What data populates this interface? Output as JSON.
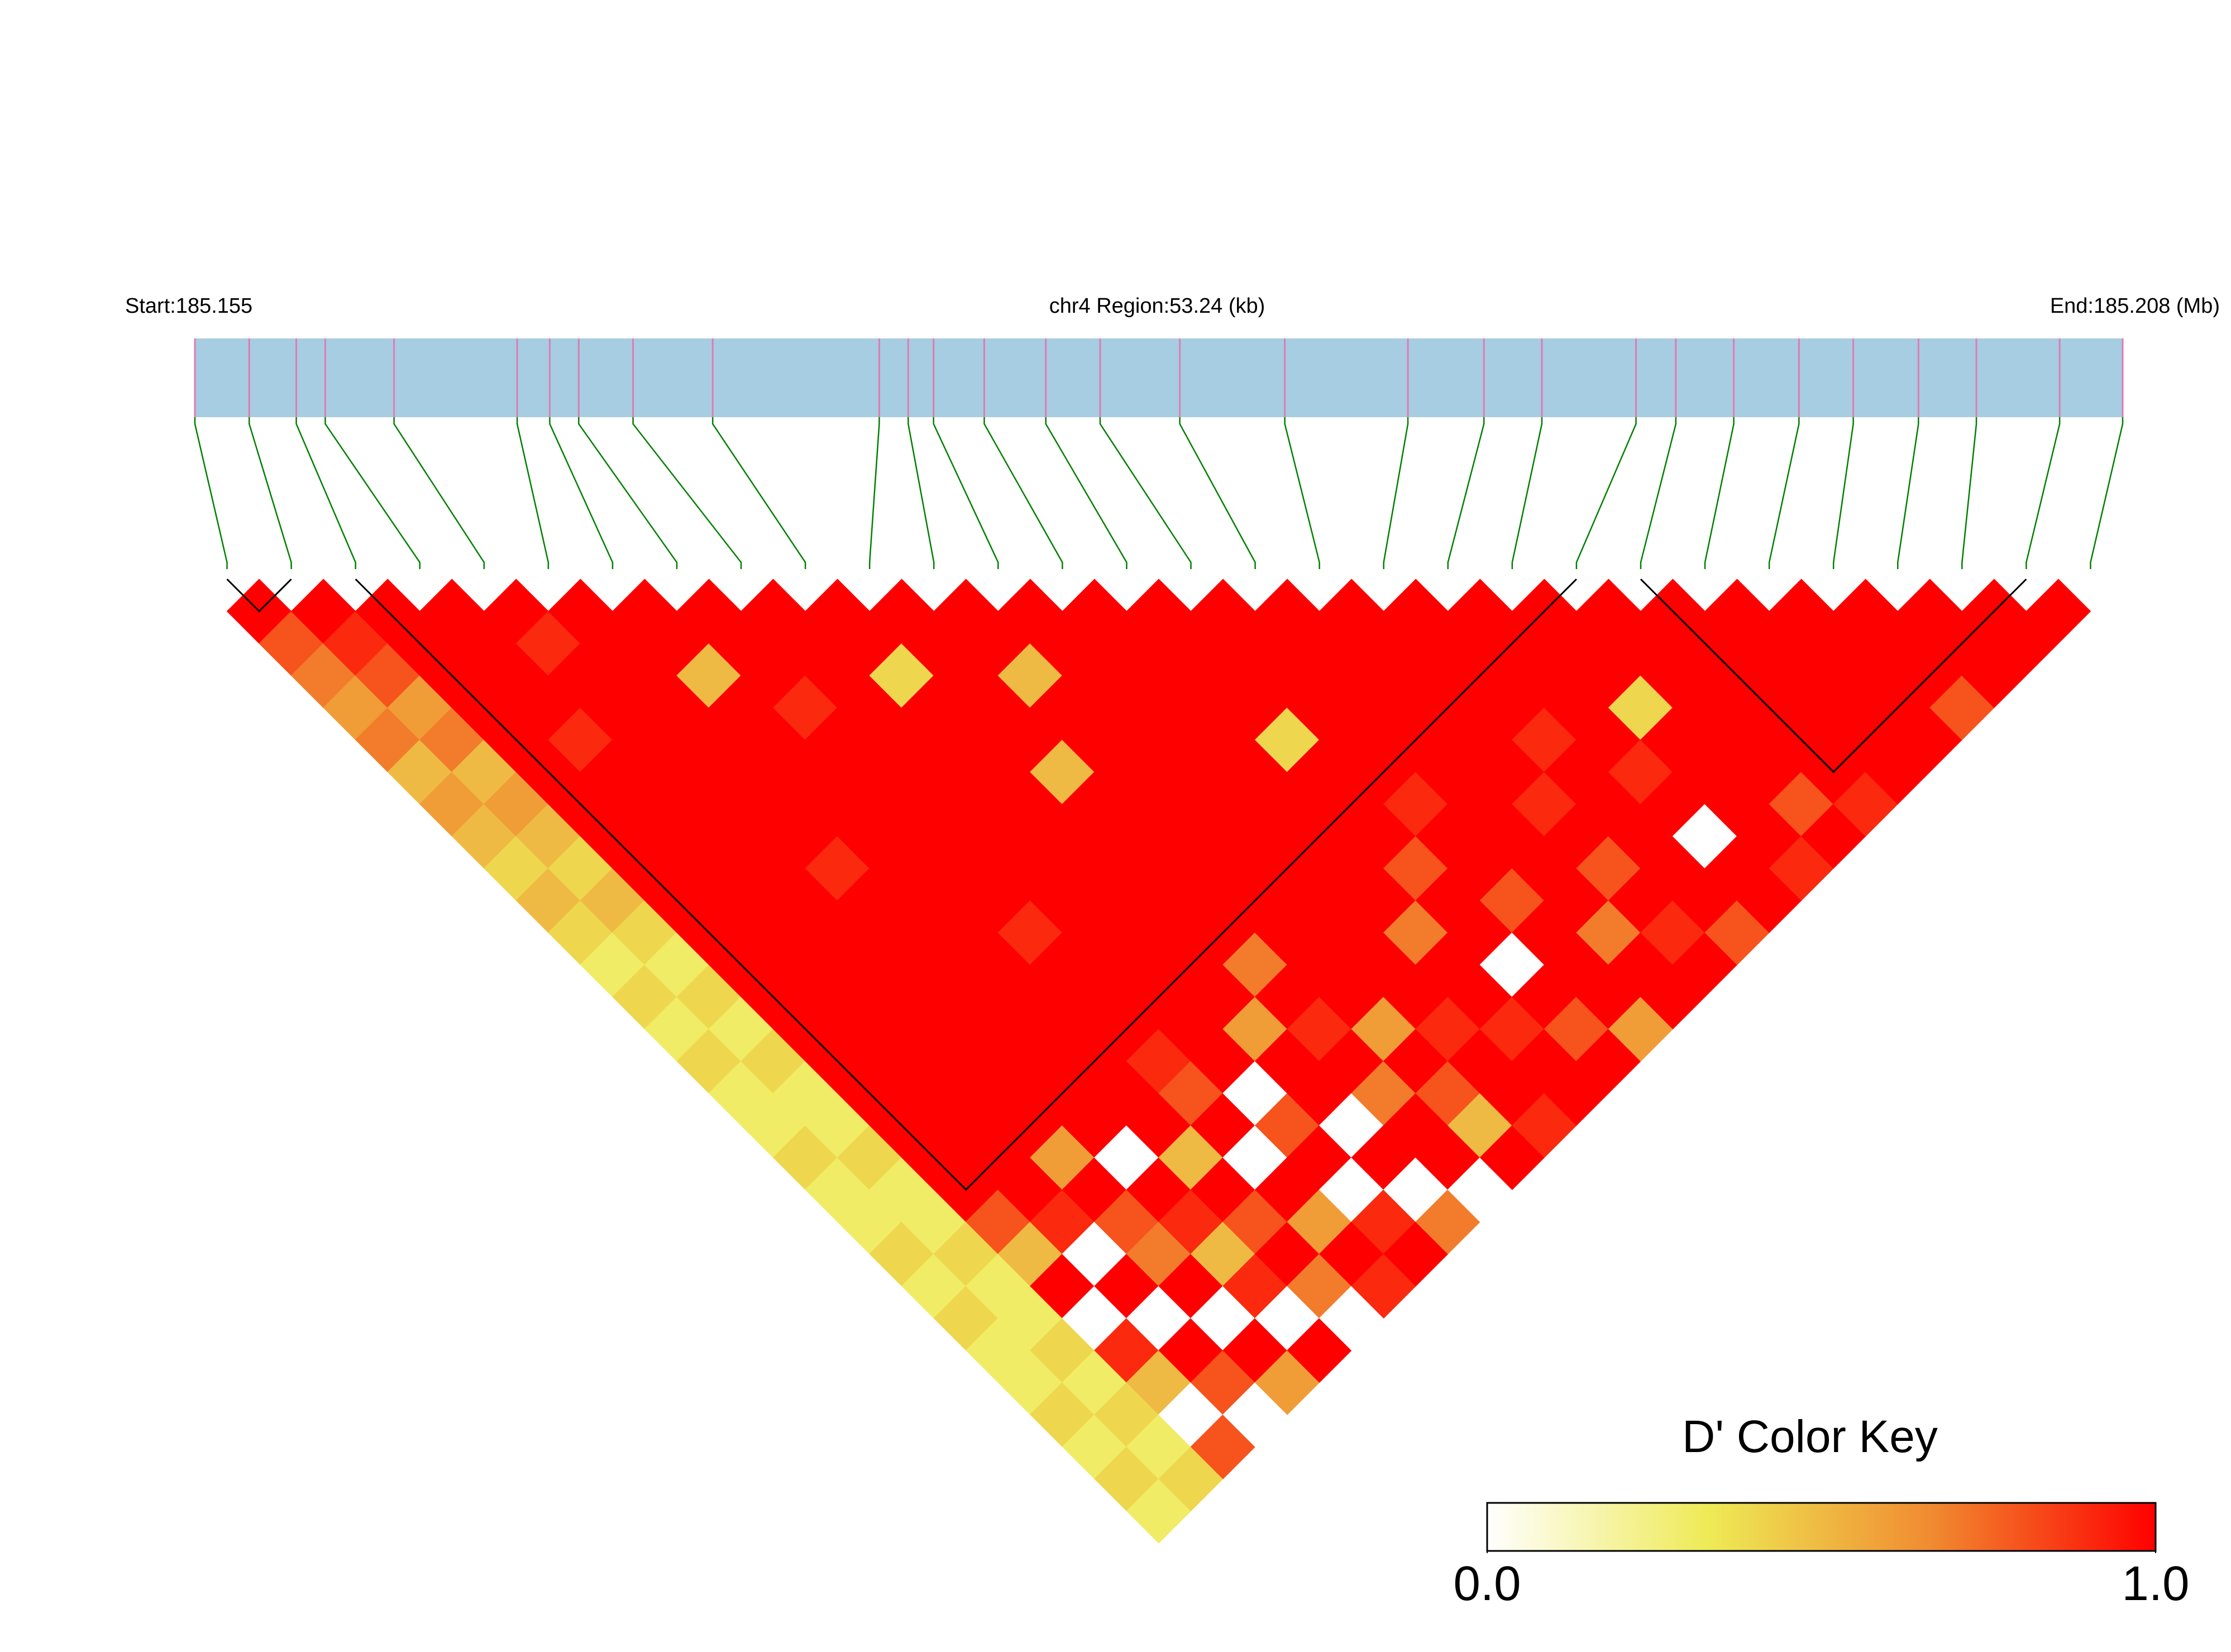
{
  "chart_data": {
    "type": "ld-heatmap",
    "label_start": "Start:185.155",
    "label_region": "chr4 Region:53.24 (kb)",
    "label_end": "End:185.208 (Mb)",
    "xlim": [
      0,
      53.24
    ],
    "snp_positions": [
      0,
      1.5,
      2.8,
      3.6,
      5.5,
      8.9,
      9.8,
      10.6,
      12.1,
      14.3,
      18.9,
      19.7,
      20.4,
      21.8,
      23.5,
      25.0,
      27.2,
      30.1,
      33.5,
      35.6,
      37.2,
      39.8,
      40.9,
      42.5,
      44.3,
      45.8,
      47.6,
      49.2,
      51.5,
      53.24
    ],
    "dprime": [
      [],
      [
        1
      ],
      [
        0.8,
        1
      ],
      [
        0.7,
        0.9,
        1
      ],
      [
        0.6,
        0.8,
        1,
        1
      ],
      [
        0.7,
        0.6,
        1,
        1,
        1
      ],
      [
        0.5,
        0.7,
        1,
        1,
        0.9,
        1
      ],
      [
        0.6,
        0.5,
        1,
        1,
        1,
        1,
        1
      ],
      [
        0.5,
        0.6,
        1,
        0.9,
        1,
        1,
        1,
        1
      ],
      [
        0.4,
        0.5,
        1,
        1,
        1,
        1,
        0.5,
        1,
        1
      ],
      [
        0.5,
        0.4,
        1,
        1,
        1,
        1,
        1,
        1,
        1,
        1
      ],
      [
        0.4,
        0.5,
        1,
        1,
        1,
        1,
        1,
        0.9,
        1,
        1,
        1
      ],
      [
        0.3,
        0.4,
        1,
        1,
        1,
        1,
        1,
        1,
        1,
        0.4,
        1,
        1
      ],
      [
        0.4,
        0.3,
        1,
        1,
        1,
        1,
        1,
        1,
        1,
        1,
        1,
        1,
        1
      ],
      [
        0.3,
        0.4,
        1,
        1,
        1,
        0.9,
        1,
        1,
        1,
        1,
        1,
        0.5,
        1,
        1
      ],
      [
        0.4,
        0.3,
        1,
        1,
        1,
        1,
        1,
        1,
        1,
        1,
        1,
        1,
        1,
        1,
        1
      ],
      [
        0.3,
        0.4,
        1,
        1,
        1,
        1,
        1,
        1,
        1,
        1,
        0.5,
        1,
        1,
        1,
        1,
        1
      ],
      [
        0.3,
        0.3,
        1,
        1,
        1,
        1,
        1,
        1,
        1,
        1,
        1,
        1,
        1,
        1,
        1,
        1,
        1
      ],
      [
        0.4,
        0.3,
        1,
        1,
        1,
        1,
        1,
        0.9,
        1,
        1,
        1,
        1,
        1,
        1,
        1,
        1,
        1,
        1
      ],
      [
        0.3,
        0.4,
        1,
        1,
        1,
        1,
        1,
        1,
        1,
        1,
        1,
        1,
        1,
        1,
        0.4,
        1,
        1,
        1,
        1
      ],
      [
        0.3,
        0.3,
        1,
        1,
        1,
        1,
        1,
        1,
        1,
        1,
        1,
        1,
        1,
        1,
        1,
        1,
        1,
        1,
        1,
        1
      ],
      [
        0.4,
        0.3,
        1,
        1,
        1,
        1,
        1,
        1,
        1,
        1,
        1,
        1,
        1,
        1,
        1,
        1,
        1,
        1,
        1,
        1,
        1
      ],
      [
        0.3,
        0.4,
        0.8,
        1,
        0.6,
        1,
        1,
        0.9,
        1,
        1,
        0.7,
        1,
        1,
        1,
        1,
        0.9,
        1,
        1,
        1,
        1,
        1,
        1
      ],
      [
        0.4,
        0.3,
        0.5,
        0.9,
        1,
        0,
        1,
        0.8,
        1,
        0.6,
        1,
        1,
        1,
        1,
        0.8,
        1,
        1,
        1,
        0.9,
        1,
        1,
        1,
        1
      ],
      [
        0.3,
        0.3,
        1,
        0,
        0.8,
        1,
        0.5,
        1,
        0,
        1,
        0.9,
        1,
        1,
        0.7,
        1,
        1,
        1,
        0.9,
        1,
        1,
        0.4,
        1,
        1,
        1
      ],
      [
        0.3,
        0.4,
        0,
        1,
        0.7,
        0.9,
        1,
        0,
        0.8,
        1,
        1,
        0.6,
        1,
        1,
        1,
        0.8,
        1,
        1,
        1,
        0.9,
        1,
        1,
        1,
        1,
        1
      ],
      [
        0.4,
        0.3,
        0.9,
        0,
        1,
        0.5,
        0.8,
        1,
        1,
        0,
        0.7,
        1,
        0.9,
        1,
        0,
        1,
        1,
        0.8,
        1,
        1,
        1,
        1,
        1,
        1,
        1,
        1
      ],
      [
        0.3,
        0.4,
        0.5,
        1,
        0,
        0.9,
        1,
        0.6,
        0,
        1,
        1,
        0.8,
        1,
        0.9,
        1,
        1,
        0.7,
        1,
        1,
        0,
        1,
        1,
        1,
        1,
        1,
        1,
        1
      ],
      [
        0.4,
        0.3,
        0,
        0.8,
        1,
        0,
        0.7,
        1,
        0.9,
        0,
        1,
        0.5,
        1,
        1,
        0.8,
        1,
        1,
        0.9,
        1,
        1,
        1,
        0.8,
        1,
        1,
        1,
        1,
        1,
        1
      ],
      [
        0.3,
        0.4,
        0.8,
        0,
        0.6,
        1,
        0,
        0.9,
        1,
        0.7,
        0,
        1,
        0.9,
        1,
        1,
        0.6,
        1,
        1,
        0.8,
        1,
        0.9,
        1,
        0.9,
        1,
        1,
        0.8,
        1,
        1,
        1
      ]
    ],
    "blocks": [
      [
        0,
        1
      ],
      [
        2,
        21
      ],
      [
        22,
        28
      ]
    ],
    "bar_color": "#a6cde2",
    "snp_color": "#e07bb5",
    "connector_color": "#008000",
    "colorscale": [
      "#ffffff",
      "#eeea55",
      "#f08a30",
      "#ff0000"
    ],
    "key_title": "D' Color Key",
    "key_lim": [
      0,
      1
    ],
    "key_ticks": [
      {
        "value": 0,
        "label": "0.0"
      },
      {
        "value": 1,
        "label": "1.0"
      }
    ]
  }
}
